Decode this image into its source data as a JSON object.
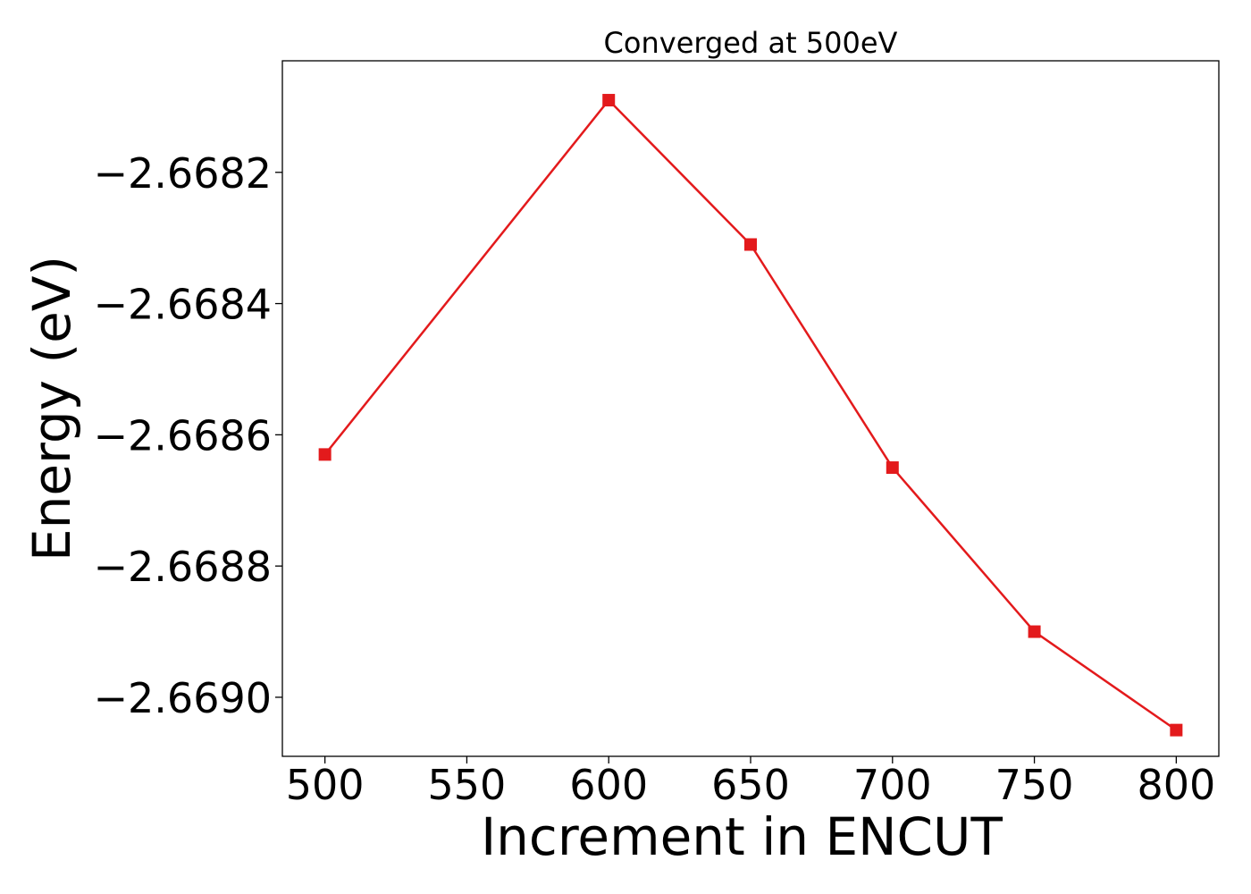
{
  "chart_data": {
    "type": "line",
    "title": "Converged at 500eV",
    "xlabel": "Increment in ENCUT",
    "ylabel": "Energy (eV)",
    "x": [
      500,
      600,
      650,
      700,
      750,
      800
    ],
    "series": [
      {
        "values": [
          -2.66863,
          -2.66809,
          -2.66831,
          -2.66865,
          -2.6689,
          -2.66905
        ],
        "color": "#e31a1c",
        "marker": "square"
      }
    ],
    "xticks": [
      500,
      550,
      600,
      650,
      700,
      750,
      800
    ],
    "xtick_labels": [
      "500",
      "550",
      "600",
      "650",
      "700",
      "750",
      "800"
    ],
    "yticks": [
      -2.6682,
      -2.6684,
      -2.6686,
      -2.6688,
      -2.669
    ],
    "ytick_labels": [
      "−2.6682",
      "−2.6684",
      "−2.6686",
      "−2.6688",
      "−2.6690"
    ],
    "xlim": [
      485,
      815
    ],
    "ylim": [
      -2.66909,
      -2.66803
    ],
    "grid": false,
    "legend": false
  }
}
